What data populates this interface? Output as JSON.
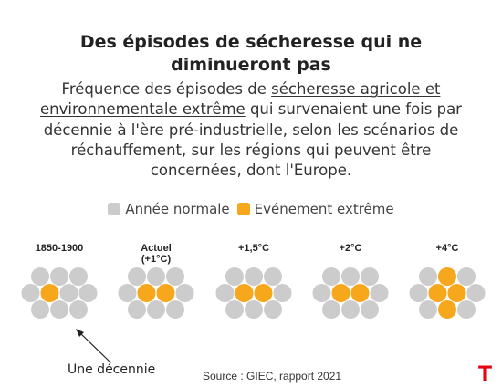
{
  "title": {
    "line1": "Des épisodes de sécheresse qui ne",
    "line2": "diminueront pas"
  },
  "subtitle": {
    "line1_pre": "Fréquence des épisodes de ",
    "line1_link": "sécheresse agricole et",
    "line2_link": "environnementale extrême",
    "line2_post": " qui survenaient une fois par",
    "line3": "décennie à l'ère pré-industrielle, selon les scénarios de",
    "line4": "réchauffement, sur les régions qui peuvent être",
    "line5": "concernées, dont l'Europe."
  },
  "legend": {
    "normal_label": "Année normale",
    "extreme_label": "Evénement extrême",
    "normal_color": "#cccccc",
    "extreme_color": "#f7a71b"
  },
  "chart_data": {
    "type": "dot-matrix",
    "units_per_group": 10,
    "categories": [
      {
        "label_lines": [
          "1850-1900"
        ],
        "extreme_events": 1
      },
      {
        "label_lines": [
          "Actuel",
          "(+1°C)"
        ],
        "extreme_events": 2
      },
      {
        "label_lines": [
          "+1,5°C"
        ],
        "extreme_events": 2
      },
      {
        "label_lines": [
          "+2°C"
        ],
        "extreme_events": 2
      },
      {
        "label_lines": [
          "+4°C"
        ],
        "extreme_events": 4
      }
    ]
  },
  "annotation": {
    "label": "Une décennie"
  },
  "source": "Source : GIEC, rapport 2021",
  "logo": "T"
}
